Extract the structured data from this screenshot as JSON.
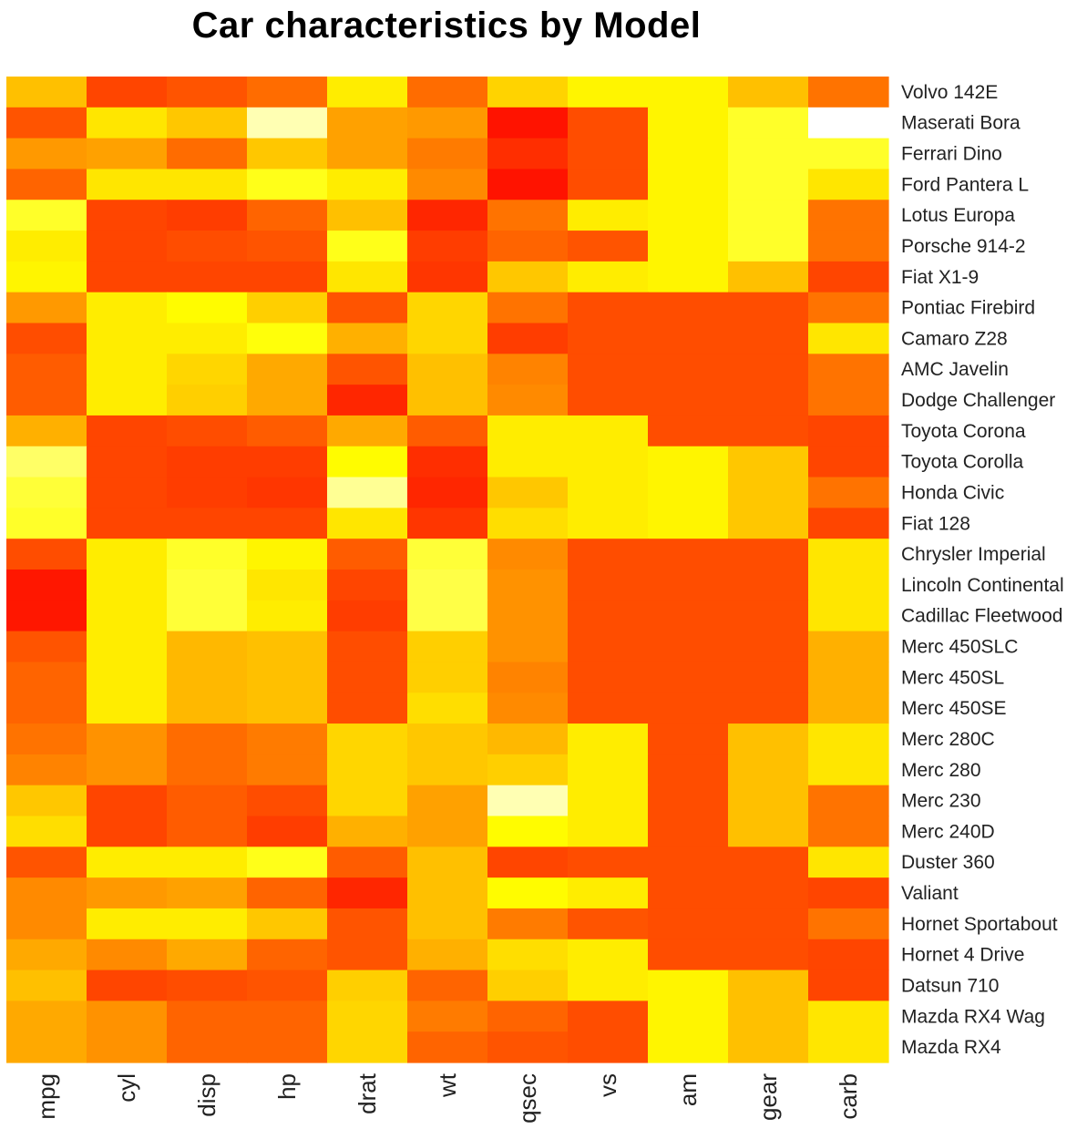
{
  "chart_data": {
    "type": "heatmap",
    "title": "Car characteristics by Model",
    "color_scale": [
      "#ff0000",
      "#ff8000",
      "#ffff00",
      "#ffffff"
    ],
    "columns": [
      "mpg",
      "cyl",
      "disp",
      "hp",
      "drat",
      "wt",
      "qsec",
      "vs",
      "am",
      "gear",
      "carb"
    ],
    "rows": [
      "Volvo 142E",
      "Maserati Bora",
      "Ferrari Dino",
      "Ford Pantera L",
      "Lotus Europa",
      "Porsche 914-2",
      "Fiat X1-9",
      "Pontiac Firebird",
      "Camaro Z28",
      "AMC Javelin",
      "Dodge Challenger",
      "Toyota Corona",
      "Toyota Corolla",
      "Honda Civic",
      "Fiat 128",
      "Chrysler Imperial",
      "Lincoln Continental",
      "Cadillac Fleetwood",
      "Merc 450SLC",
      "Merc 450SL",
      "Merc 450SE",
      "Merc 280C",
      "Merc 280",
      "Merc 230",
      "Merc 240D",
      "Duster 360",
      "Valiant",
      "Hornet Sportabout",
      "Hornet 4 Drive",
      "Datsun 710",
      "Mazda RX4 Wag",
      "Mazda RX4"
    ],
    "values": [
      [
        0.5,
        0.18,
        0.22,
        0.28,
        0.62,
        0.28,
        0.55,
        0.64,
        0.64,
        0.5,
        0.3
      ],
      [
        0.22,
        0.6,
        0.52,
        0.9,
        0.42,
        0.4,
        0.05,
        0.2,
        0.64,
        0.72,
        1.0
      ],
      [
        0.4,
        0.42,
        0.28,
        0.52,
        0.42,
        0.32,
        0.12,
        0.2,
        0.64,
        0.72,
        0.72
      ],
      [
        0.26,
        0.6,
        0.6,
        0.7,
        0.62,
        0.36,
        0.05,
        0.2,
        0.64,
        0.72,
        0.6
      ],
      [
        0.72,
        0.18,
        0.16,
        0.26,
        0.5,
        0.1,
        0.3,
        0.62,
        0.64,
        0.72,
        0.3
      ],
      [
        0.62,
        0.18,
        0.2,
        0.22,
        0.7,
        0.16,
        0.26,
        0.22,
        0.64,
        0.72,
        0.3
      ],
      [
        0.64,
        0.18,
        0.18,
        0.18,
        0.6,
        0.14,
        0.52,
        0.62,
        0.64,
        0.5,
        0.18
      ],
      [
        0.4,
        0.62,
        0.66,
        0.54,
        0.22,
        0.56,
        0.3,
        0.2,
        0.2,
        0.2,
        0.3
      ],
      [
        0.2,
        0.62,
        0.62,
        0.68,
        0.46,
        0.56,
        0.16,
        0.2,
        0.2,
        0.2,
        0.6
      ],
      [
        0.24,
        0.62,
        0.56,
        0.44,
        0.22,
        0.5,
        0.34,
        0.2,
        0.2,
        0.2,
        0.3
      ],
      [
        0.24,
        0.62,
        0.54,
        0.44,
        0.1,
        0.5,
        0.36,
        0.2,
        0.2,
        0.2,
        0.3
      ],
      [
        0.46,
        0.18,
        0.2,
        0.24,
        0.44,
        0.24,
        0.62,
        0.62,
        0.2,
        0.2,
        0.18
      ],
      [
        0.8,
        0.18,
        0.16,
        0.16,
        0.66,
        0.12,
        0.62,
        0.62,
        0.64,
        0.52,
        0.18
      ],
      [
        0.74,
        0.18,
        0.16,
        0.14,
        0.86,
        0.1,
        0.52,
        0.62,
        0.64,
        0.52,
        0.3
      ],
      [
        0.72,
        0.18,
        0.18,
        0.18,
        0.6,
        0.14,
        0.58,
        0.62,
        0.64,
        0.52,
        0.18
      ],
      [
        0.2,
        0.62,
        0.72,
        0.64,
        0.24,
        0.74,
        0.36,
        0.2,
        0.2,
        0.2,
        0.6
      ],
      [
        0.06,
        0.62,
        0.74,
        0.6,
        0.18,
        0.76,
        0.38,
        0.2,
        0.2,
        0.2,
        0.6
      ],
      [
        0.06,
        0.62,
        0.74,
        0.62,
        0.16,
        0.76,
        0.38,
        0.2,
        0.2,
        0.2,
        0.6
      ],
      [
        0.22,
        0.62,
        0.48,
        0.5,
        0.2,
        0.54,
        0.38,
        0.2,
        0.2,
        0.2,
        0.46
      ],
      [
        0.26,
        0.62,
        0.48,
        0.5,
        0.2,
        0.54,
        0.34,
        0.2,
        0.2,
        0.2,
        0.46
      ],
      [
        0.26,
        0.62,
        0.48,
        0.5,
        0.2,
        0.58,
        0.36,
        0.2,
        0.2,
        0.2,
        0.46
      ],
      [
        0.3,
        0.38,
        0.28,
        0.32,
        0.56,
        0.52,
        0.48,
        0.62,
        0.2,
        0.5,
        0.6
      ],
      [
        0.34,
        0.38,
        0.28,
        0.32,
        0.56,
        0.52,
        0.54,
        0.62,
        0.2,
        0.5,
        0.6
      ],
      [
        0.52,
        0.18,
        0.24,
        0.2,
        0.56,
        0.42,
        0.9,
        0.62,
        0.2,
        0.5,
        0.3
      ],
      [
        0.58,
        0.18,
        0.24,
        0.16,
        0.46,
        0.42,
        0.66,
        0.62,
        0.2,
        0.5,
        0.3
      ],
      [
        0.22,
        0.62,
        0.62,
        0.7,
        0.24,
        0.5,
        0.18,
        0.2,
        0.2,
        0.2,
        0.6
      ],
      [
        0.36,
        0.4,
        0.42,
        0.26,
        0.1,
        0.5,
        0.66,
        0.62,
        0.2,
        0.2,
        0.18
      ],
      [
        0.36,
        0.62,
        0.62,
        0.52,
        0.22,
        0.5,
        0.32,
        0.22,
        0.2,
        0.2,
        0.3
      ],
      [
        0.44,
        0.36,
        0.44,
        0.26,
        0.22,
        0.46,
        0.58,
        0.62,
        0.2,
        0.2,
        0.18
      ],
      [
        0.5,
        0.18,
        0.2,
        0.22,
        0.54,
        0.26,
        0.54,
        0.62,
        0.64,
        0.5,
        0.18
      ],
      [
        0.44,
        0.38,
        0.26,
        0.26,
        0.56,
        0.32,
        0.26,
        0.2,
        0.64,
        0.5,
        0.6
      ],
      [
        0.44,
        0.38,
        0.26,
        0.26,
        0.56,
        0.26,
        0.22,
        0.2,
        0.64,
        0.5,
        0.6
      ]
    ]
  }
}
